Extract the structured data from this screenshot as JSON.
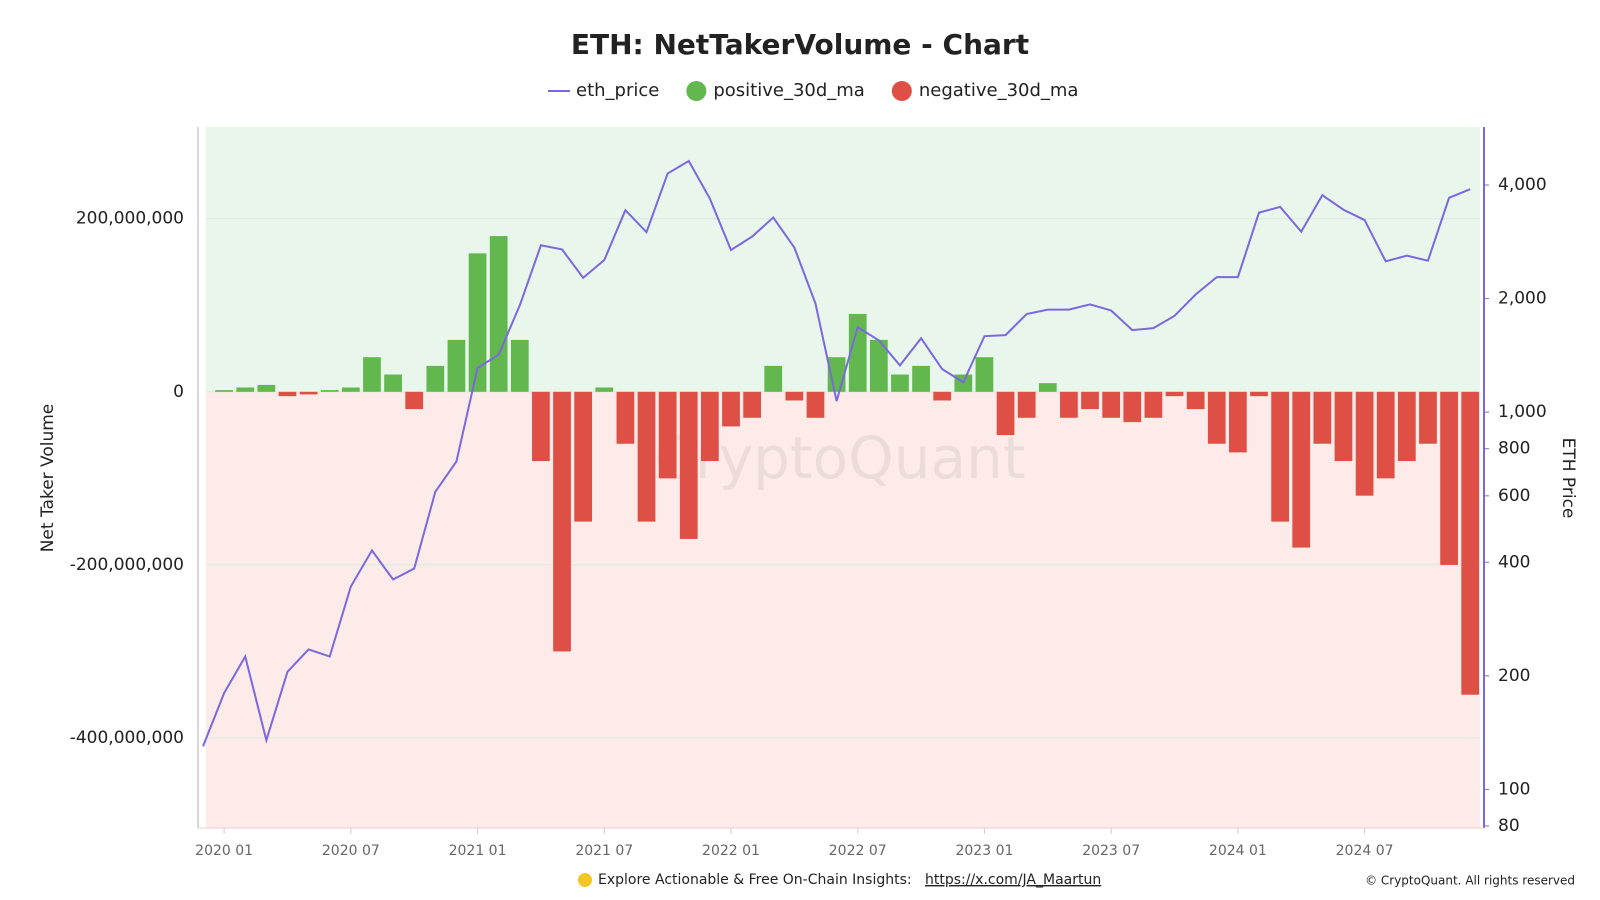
{
  "chart_data": {
    "type": "bar",
    "title": "ETH: NetTakerVolume - Chart",
    "y_label": "Net Taker Volume",
    "y2_label": "ETH Price",
    "watermark": "CryptoQuant",
    "footer_text": "Explore Actionable & Free On-Chain Insights:",
    "footer_link": "https://x.com/JA_Maartun",
    "copyright": "© CryptoQuant. All rights reserved",
    "x": [
      "2019-12",
      "2020-01",
      "2020-02",
      "2020-03",
      "2020-04",
      "2020-05",
      "2020-06",
      "2020-07",
      "2020-08",
      "2020-09",
      "2020-10",
      "2020-11",
      "2020-12",
      "2021-01",
      "2021-02",
      "2021-03",
      "2021-04",
      "2021-05",
      "2021-06",
      "2021-07",
      "2021-08",
      "2021-09",
      "2021-10",
      "2021-11",
      "2021-12",
      "2022-01",
      "2022-02",
      "2022-03",
      "2022-04",
      "2022-05",
      "2022-06",
      "2022-07",
      "2022-08",
      "2022-09",
      "2022-10",
      "2022-11",
      "2022-12",
      "2023-01",
      "2023-02",
      "2023-03",
      "2023-04",
      "2023-05",
      "2023-06",
      "2023-07",
      "2023-08",
      "2023-09",
      "2023-10",
      "2023-11",
      "2023-12",
      "2024-01",
      "2024-02",
      "2024-03",
      "2024-04",
      "2024-05",
      "2024-06",
      "2024-07",
      "2024-08",
      "2024-09",
      "2024-10",
      "2024-11",
      "2024-12"
    ],
    "series": [
      {
        "name": "eth_price",
        "kind": "line",
        "axis": "y2",
        "color": "#7b68de",
        "values": [
          130,
          180,
          225,
          135,
          205,
          235,
          225,
          345,
          430,
          360,
          385,
          615,
          740,
          1310,
          1420,
          1920,
          2770,
          2700,
          2270,
          2530,
          3430,
          3000,
          4290,
          4630,
          3680,
          2690,
          2920,
          3280,
          2730,
          1940,
          1070,
          1680,
          1550,
          1330,
          1570,
          1300,
          1200,
          1590,
          1600,
          1820,
          1870,
          1870,
          1930,
          1860,
          1650,
          1670,
          1800,
          2050,
          2280,
          2280,
          3380,
          3500,
          3010,
          3760,
          3440,
          3230,
          2510,
          2600,
          2520,
          3700,
          3900
        ]
      },
      {
        "name": "positive_30d_ma",
        "kind": "bar",
        "color": "#62b84f",
        "values": [
          null,
          2000000,
          5000000,
          8000000,
          null,
          null,
          2000000,
          5000000,
          40000000,
          20000000,
          null,
          30000000,
          60000000,
          160000000,
          180000000,
          60000000,
          null,
          null,
          null,
          5000000,
          null,
          null,
          null,
          null,
          null,
          null,
          null,
          30000000,
          null,
          null,
          40000000,
          90000000,
          60000000,
          20000000,
          30000000,
          null,
          20000000,
          40000000,
          null,
          null,
          10000000,
          null,
          null,
          null,
          null,
          null,
          null,
          null,
          null,
          null,
          null,
          null,
          null,
          null,
          null,
          null,
          null,
          null,
          null,
          null,
          null
        ]
      },
      {
        "name": "negative_30d_ma",
        "kind": "bar",
        "color": "#de4f45",
        "values": [
          null,
          null,
          null,
          null,
          -5000000,
          -3000000,
          null,
          null,
          null,
          null,
          -20000000,
          null,
          null,
          null,
          null,
          null,
          -80000000,
          -300000000,
          -150000000,
          null,
          -60000000,
          -150000000,
          -100000000,
          -170000000,
          -80000000,
          -40000000,
          -30000000,
          null,
          -10000000,
          -30000000,
          null,
          null,
          null,
          null,
          null,
          -10000000,
          null,
          null,
          -50000000,
          -30000000,
          null,
          -30000000,
          -20000000,
          -30000000,
          -35000000,
          -30000000,
          -5000000,
          -20000000,
          -60000000,
          -70000000,
          -5000000,
          -150000000,
          -180000000,
          -60000000,
          -80000000,
          -120000000,
          -100000000,
          -80000000,
          -60000000,
          -200000000,
          -350000000
        ]
      }
    ],
    "xticks": [
      {
        "value": "2020-01",
        "label": "2020 01"
      },
      {
        "value": "2020-07",
        "label": "2020 07"
      },
      {
        "value": "2021-01",
        "label": "2021 01"
      },
      {
        "value": "2021-07",
        "label": "2021 07"
      },
      {
        "value": "2022-01",
        "label": "2022 01"
      },
      {
        "value": "2022-07",
        "label": "2022 07"
      },
      {
        "value": "2023-01",
        "label": "2023 01"
      },
      {
        "value": "2023-07",
        "label": "2023 07"
      },
      {
        "value": "2024-01",
        "label": "2024 01"
      },
      {
        "value": "2024-07",
        "label": "2024 07"
      }
    ],
    "ylim": [
      -504000000,
      306000000
    ],
    "yticks": [
      {
        "value": -400000000,
        "label": "-400,000,000"
      },
      {
        "value": -200000000,
        "label": "-200,000,000"
      },
      0,
      {
        "value": 200000000,
        "label": "200,000,000"
      }
    ],
    "y2lim": [
      79,
      5700
    ],
    "y2_log": true,
    "y2ticks": [
      80,
      100,
      200,
      400,
      600,
      800,
      {
        "value": 1000,
        "label": "1,000"
      },
      {
        "value": 2000,
        "label": "2,000"
      },
      {
        "value": 4000,
        "label": "4,000"
      }
    ],
    "grid": true,
    "legend": "top"
  }
}
